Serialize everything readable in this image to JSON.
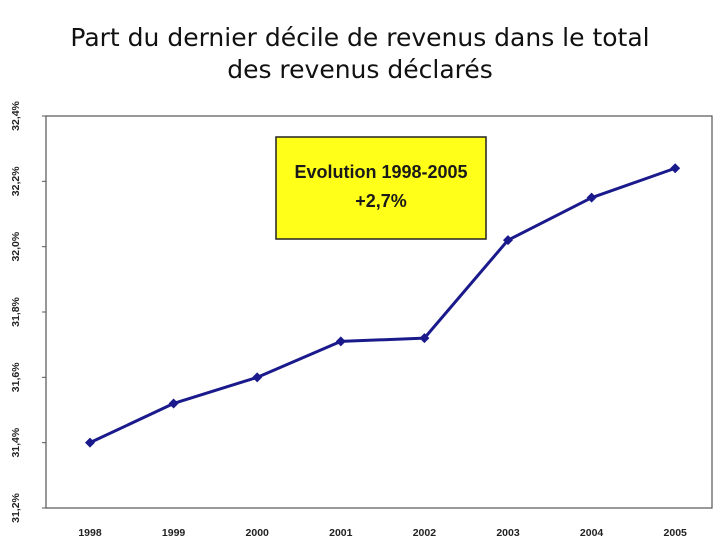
{
  "title_lines": [
    "Part du dernier décile de revenus dans le total",
    "des revenus déclarés"
  ],
  "annotation": {
    "line1": "Evolution 1998-2005",
    "line2": "+2,7%",
    "bg_color": "#ffff1a",
    "border_color": "#222222"
  },
  "colors": {
    "line": "#1a1a8c",
    "marker": "#1a1a8c",
    "frame": "#555555"
  },
  "chart_data": {
    "type": "line",
    "title": "Part du dernier décile de revenus dans le total des revenus déclarés",
    "categories": [
      "1998",
      "1999",
      "2000",
      "2001",
      "2002",
      "2003",
      "2004",
      "2005"
    ],
    "series": [
      {
        "values": [
          31.4,
          31.52,
          31.6,
          31.71,
          31.72,
          32.02,
          32.15,
          32.24
        ]
      }
    ],
    "yticks": [
      "31,2%",
      "31,4%",
      "31,6%",
      "31,8%",
      "32,0%",
      "32,2%",
      "32,4%"
    ],
    "ylim": [
      31.2,
      32.4
    ],
    "grid": false,
    "xlabel": "",
    "ylabel": ""
  }
}
